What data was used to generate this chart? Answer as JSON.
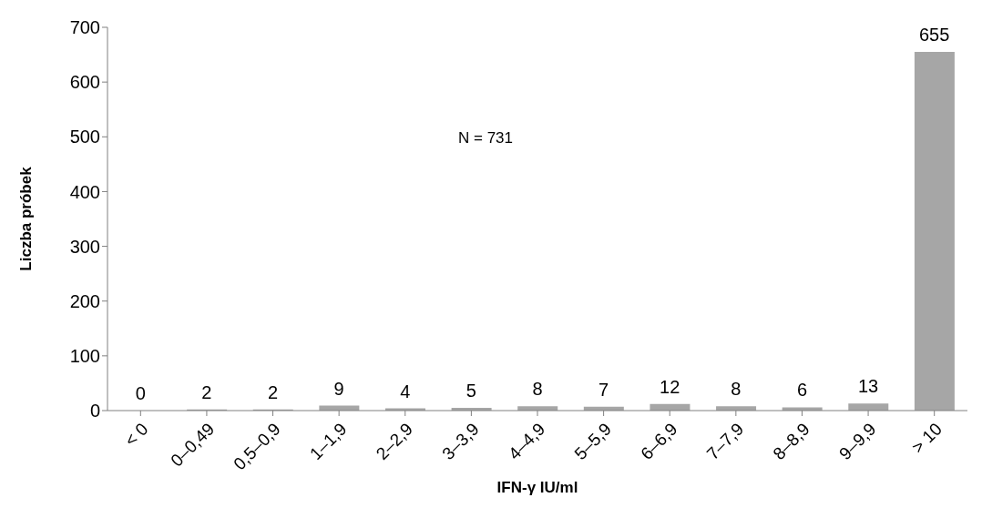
{
  "chart_data": {
    "type": "bar",
    "xlabel": "IFN-γ IU/ml",
    "ylabel": "Liczba próbek",
    "categories": [
      "< 0",
      "0–0,49",
      "0,5–0,9",
      "1–1,9",
      "2–2,9",
      "3–3,9",
      "4–4,9",
      "5–5,9",
      "6–6,9",
      "7–7,9",
      "8–8,9",
      "9–9,9",
      "> 10"
    ],
    "values": [
      0,
      2,
      2,
      9,
      4,
      5,
      8,
      7,
      12,
      8,
      6,
      13,
      655
    ],
    "color": "#a6a6a6",
    "ylim": [
      0,
      700
    ],
    "yticks": [
      0,
      100,
      200,
      300,
      400,
      500,
      600,
      700
    ],
    "data_labels": true,
    "annotations": [
      "N = 731"
    ]
  }
}
